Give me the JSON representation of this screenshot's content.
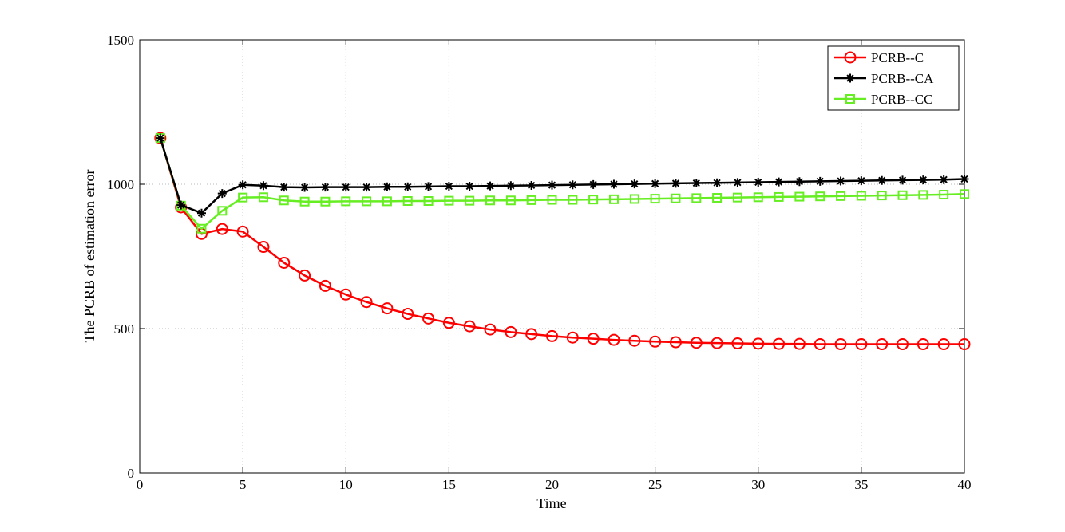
{
  "chart_data": {
    "type": "line",
    "title": "",
    "xlabel": "Time",
    "ylabel": "The PCRB of estimation error",
    "xlim": [
      0,
      40
    ],
    "ylim": [
      0,
      1500
    ],
    "xticks": [
      0,
      5,
      10,
      15,
      20,
      25,
      30,
      35,
      40
    ],
    "yticks": [
      0,
      500,
      1000,
      1500
    ],
    "grid": true,
    "legend_position": "top-right",
    "x": [
      1,
      2,
      3,
      4,
      5,
      6,
      7,
      8,
      9,
      10,
      11,
      12,
      13,
      14,
      15,
      16,
      17,
      18,
      19,
      20,
      21,
      22,
      23,
      24,
      25,
      26,
      27,
      28,
      29,
      30,
      31,
      32,
      33,
      34,
      35,
      36,
      37,
      38,
      39,
      40
    ],
    "series": [
      {
        "name": "PCRB--C",
        "color": "#ff0000",
        "marker": "circle",
        "values": [
          1160,
          920,
          828,
          845,
          836,
          783,
          728,
          684,
          648,
          618,
          592,
          570,
          551,
          535,
          520,
          508,
          497,
          488,
          481,
          474,
          469,
          465,
          461,
          458,
          455,
          453,
          451,
          450,
          449,
          448,
          447,
          447,
          446,
          446,
          446,
          446,
          446,
          446,
          446,
          446
        ]
      },
      {
        "name": "PCRB--CA",
        "color": "#000000",
        "marker": "asterisk",
        "values": [
          1160,
          928,
          900,
          968,
          998,
          995,
          990,
          989,
          990,
          990,
          990,
          991,
          991,
          992,
          993,
          993,
          994,
          995,
          996,
          997,
          998,
          999,
          1000,
          1001,
          1002,
          1003,
          1004,
          1005,
          1006,
          1007,
          1008,
          1009,
          1010,
          1011,
          1012,
          1013,
          1014,
          1015,
          1016,
          1018
        ]
      },
      {
        "name": "PCRB--CC",
        "color": "#66ee22",
        "marker": "square",
        "values": [
          1160,
          926,
          846,
          908,
          954,
          955,
          944,
          940,
          940,
          941,
          941,
          941,
          942,
          942,
          943,
          943,
          944,
          944,
          945,
          946,
          946,
          947,
          948,
          949,
          950,
          951,
          952,
          953,
          954,
          955,
          956,
          957,
          958,
          959,
          960,
          961,
          962,
          963,
          964,
          966
        ]
      }
    ]
  }
}
